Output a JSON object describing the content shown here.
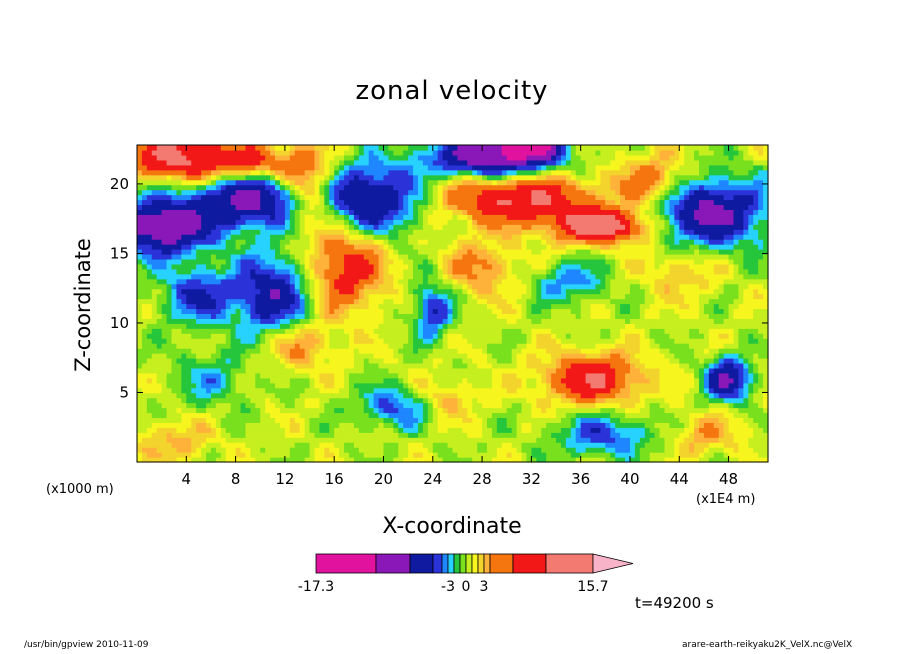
{
  "chart_data": {
    "type": "heatmap",
    "title": "zonal velocity",
    "xlabel": "X-coordinate",
    "ylabel": "Z-coordinate",
    "x_unit_left": "(x1000 m)",
    "x_unit_right": "(x1E4 m)",
    "x_ticks": [
      4,
      8,
      12,
      16,
      20,
      24,
      28,
      32,
      36,
      40,
      44,
      48
    ],
    "y_ticks": [
      5,
      10,
      15,
      20
    ],
    "xlim": [
      0,
      51.2
    ],
    "ylim": [
      0,
      22.8
    ],
    "colorbar": {
      "labels": [
        {
          "text": "-17.3",
          "value": -17.3
        },
        {
          "text": "-3",
          "value": -3
        },
        {
          "text": "0",
          "value": 0
        },
        {
          "text": "3",
          "value": 3
        },
        {
          "text": "15.7",
          "value": 15.7
        }
      ],
      "levels": [
        -17.3,
        -12.3,
        -8.3,
        -5.5,
        -4,
        -3,
        -2,
        -1,
        0,
        1,
        2,
        3,
        4,
        6,
        9,
        15.7
      ],
      "colors": [
        "#e0129e",
        "#8a18b8",
        "#0f1aa0",
        "#2a33d8",
        "#1e86ff",
        "#27d2ff",
        "#26c63c",
        "#79e01e",
        "#c6ef1f",
        "#f7f51e",
        "#f3d42c",
        "#ffb23a",
        "#f5750f",
        "#f21818",
        "#f37a70"
      ],
      "extend_color": "#f9b3c9"
    },
    "annotation_time": "t=49200 s"
  },
  "footer": {
    "left": "/usr/bin/gpview   2010-11-09",
    "right": "arare-earth-reikyaku2K_VelX.nc@VelX"
  }
}
